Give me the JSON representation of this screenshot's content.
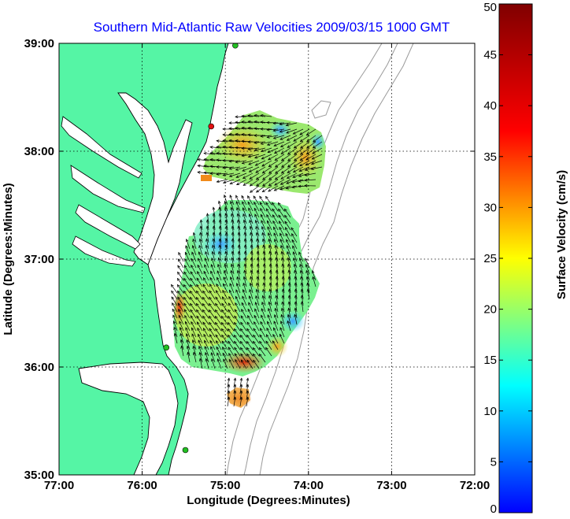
{
  "title": "Southern Mid-Atlantic Raw Velocities 2009/03/15 1000 GMT",
  "xlabel": "Longitude (Degrees:Minutes)",
  "ylabel": "Latitude (Degrees:Minutes)",
  "colorbar": {
    "label": "Surface Velocity (cm/s)",
    "min": 0,
    "max": 50,
    "ticks": [
      "0",
      "5",
      "10",
      "15",
      "20",
      "25",
      "30",
      "35",
      "40",
      "45",
      "50"
    ]
  },
  "map": {
    "lon_range": [
      -77,
      -72
    ],
    "lat_range": [
      35,
      39
    ],
    "x_ticks": [
      "77:00",
      "76:00",
      "75:00",
      "74:00",
      "73:00",
      "72:00"
    ],
    "y_ticks": [
      "35:00",
      "36:00",
      "37:00",
      "38:00",
      "39:00"
    ],
    "grid": "dotted",
    "land_color": "#55f5a5",
    "coast_color": "#000000",
    "bathymetry_color": "#9a9a9a",
    "vector_color": "#000000"
  },
  "stations": [
    {
      "lon": -74.88,
      "lat": 38.98,
      "color": "#22c022"
    },
    {
      "lon": -75.17,
      "lat": 38.23,
      "color": "#e01010"
    },
    {
      "lon": -75.71,
      "lat": 36.18,
      "color": "#22c022"
    },
    {
      "lon": -75.48,
      "lat": 35.23,
      "color": "#22c022"
    }
  ]
}
